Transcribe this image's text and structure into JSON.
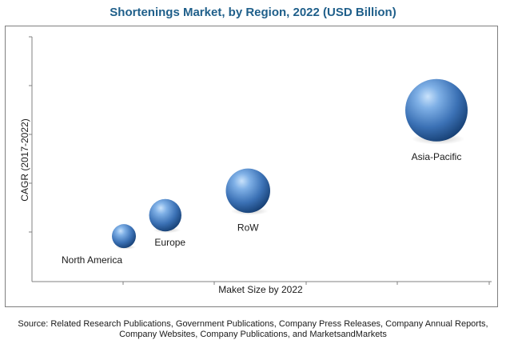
{
  "chart_data": {
    "type": "bubble",
    "title": "Shortenings Market, by Region, 2022 (USD Billion)",
    "xlabel": "Maket Size by 2022",
    "ylabel": "CAGR (2017-2022)",
    "points": [
      {
        "label": "North America",
        "x": 1.0,
        "y": 1.3,
        "size": 1.0
      },
      {
        "label": "Europe",
        "x": 1.45,
        "y": 1.9,
        "size": 1.35
      },
      {
        "label": "RoW",
        "x": 2.35,
        "y": 2.6,
        "size": 1.85
      },
      {
        "label": "Asia-Pacific",
        "x": 4.4,
        "y": 4.9,
        "size": 2.6
      }
    ],
    "xlim": [
      0,
      5
    ],
    "ylim": [
      0,
      7
    ],
    "bubble_color": "#4f86c6",
    "grid": false
  },
  "source": "Source: Related Research Publications, Government Publications, Company Press Releases, Company Annual Reports, Company Websites, Company Publications, and MarketsandMarkets"
}
